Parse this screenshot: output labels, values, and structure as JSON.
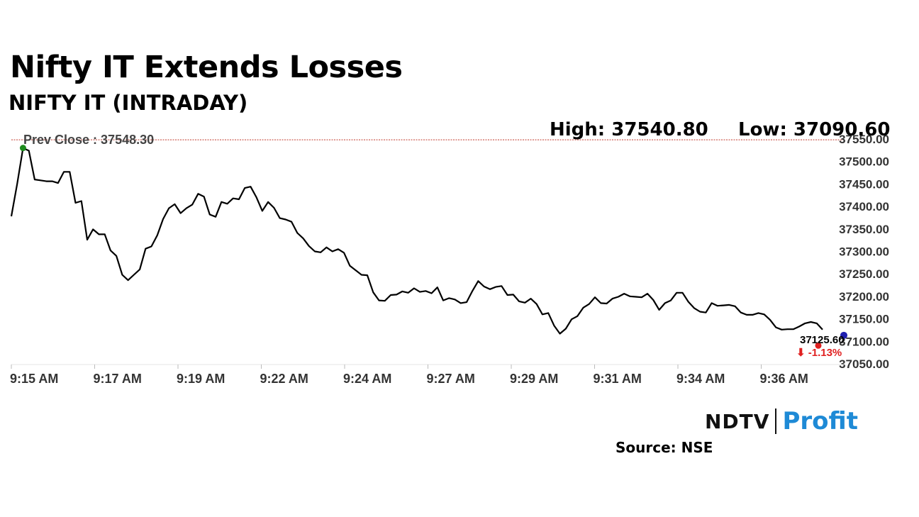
{
  "header": {
    "title": "Nifty IT Extends Losses",
    "subtitle": "NIFTY IT (INTRADAY)",
    "high_text": "High: 37540.80",
    "low_text": "Low: 37090.60"
  },
  "footer": {
    "brand_ndtv": "NDTV",
    "brand_profit": "Profit",
    "source": "Source: NSE"
  },
  "colors": {
    "line": "#000000",
    "prev_close_line": "#c0392b",
    "high_marker": "#1e8c1e",
    "low_marker": "#e02020",
    "current_marker": "#1f1fb0",
    "change_text": "#e02020",
    "brand_profit": "#1e8ad6"
  },
  "chart_data": {
    "type": "line",
    "title": "NIFTY IT (INTRADAY)",
    "ylim": [
      37050,
      37550
    ],
    "y_ticks": [
      "37550.00",
      "37500.00",
      "37450.00",
      "37400.00",
      "37350.00",
      "37300.00",
      "37250.00",
      "37200.00",
      "37150.00",
      "37100.00",
      "37050.00"
    ],
    "x_tick_labels": [
      "9:15 AM",
      "9:17 AM",
      "9:19 AM",
      "9:22 AM",
      "9:24 AM",
      "9:27 AM",
      "9:29 AM",
      "9:31 AM",
      "9:34 AM",
      "9:36 AM"
    ],
    "grid": false,
    "prev_close": 37548.3,
    "prev_close_label": "Prev Close : 37548.30",
    "high": 37540.8,
    "low": 37090.6,
    "last_value_label": "37125.60",
    "change_label": "⬇ -1.13%",
    "series": [
      {
        "values": [
          37378,
          37450,
          37530,
          37524,
          37460,
          37458,
          37456,
          37456,
          37452,
          37477,
          37477,
          37408,
          37412,
          37326,
          37349,
          37338,
          37338,
          37302,
          37290,
          37248,
          37236,
          37248,
          37260,
          37306,
          37311,
          37336,
          37372,
          37396,
          37405,
          37385,
          37396,
          37404,
          37428,
          37422,
          37382,
          37377,
          37410,
          37406,
          37418,
          37416,
          37441,
          37444,
          37420,
          37390,
          37410,
          37397,
          37374,
          37371,
          37366,
          37341,
          37329,
          37312,
          37300,
          37298,
          37309,
          37300,
          37305,
          37297,
          37268,
          37258,
          37248,
          37247,
          37209,
          37191,
          37190,
          37203,
          37204,
          37211,
          37208,
          37218,
          37210,
          37212,
          37207,
          37220,
          37191,
          37196,
          37193,
          37185,
          37187,
          37212,
          37234,
          37222,
          37216,
          37221,
          37223,
          37203,
          37204,
          37189,
          37186,
          37195,
          37183,
          37160,
          37163,
          37135,
          37117,
          37128,
          37149,
          37156,
          37175,
          37183,
          37198,
          37185,
          37184,
          37195,
          37199,
          37206,
          37200,
          37199,
          37198,
          37206,
          37192,
          37170,
          37185,
          37191,
          37208,
          37208,
          37188,
          37174,
          37166,
          37164,
          37185,
          37179,
          37180,
          37181,
          37178,
          37164,
          37159,
          37159,
          37163,
          37160,
          37148,
          37131,
          37126,
          37127,
          37127,
          37133,
          37140,
          37143,
          37140,
          37126
        ]
      }
    ]
  }
}
